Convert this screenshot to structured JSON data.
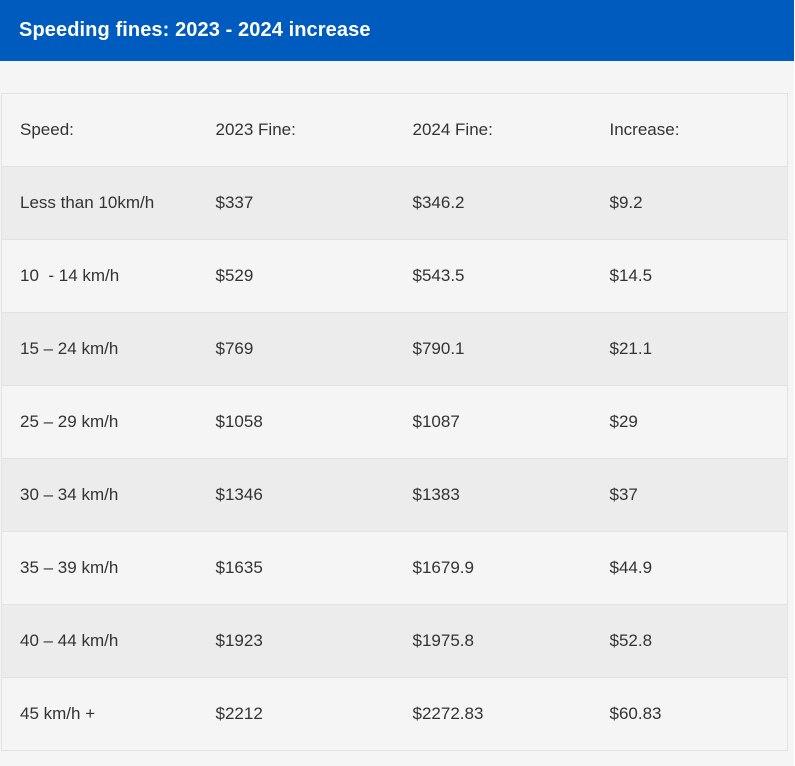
{
  "title": "Speeding fines: 2023 - 2024 increase",
  "table": {
    "headers": [
      "Speed:",
      "2023 Fine:",
      "2024 Fine:",
      "Increase:"
    ],
    "rows": [
      [
        "Less than 10km/h",
        "$337",
        "$346.2",
        "$9.2"
      ],
      [
        "10  - 14 km/h",
        "$529",
        "$543.5",
        "$14.5"
      ],
      [
        "15 – 24 km/h",
        "$769",
        "$790.1",
        "$21.1"
      ],
      [
        "25 – 29 km/h",
        "$1058",
        "$1087",
        "$29"
      ],
      [
        "30 – 34 km/h",
        "$1346",
        "$1383",
        "$37"
      ],
      [
        "35 – 39 km/h",
        "$1635",
        "$1679.9",
        "$44.9"
      ],
      [
        "40 – 44 km/h",
        "$1923",
        "$1975.8",
        "$52.8"
      ],
      [
        "45 km/h +",
        "$2212",
        "$2272.83",
        "$60.83"
      ]
    ]
  },
  "colors": {
    "header_bg": "#005bbf",
    "panel_bg": "#f5f5f5",
    "row_alt_bg": "#ececec"
  }
}
